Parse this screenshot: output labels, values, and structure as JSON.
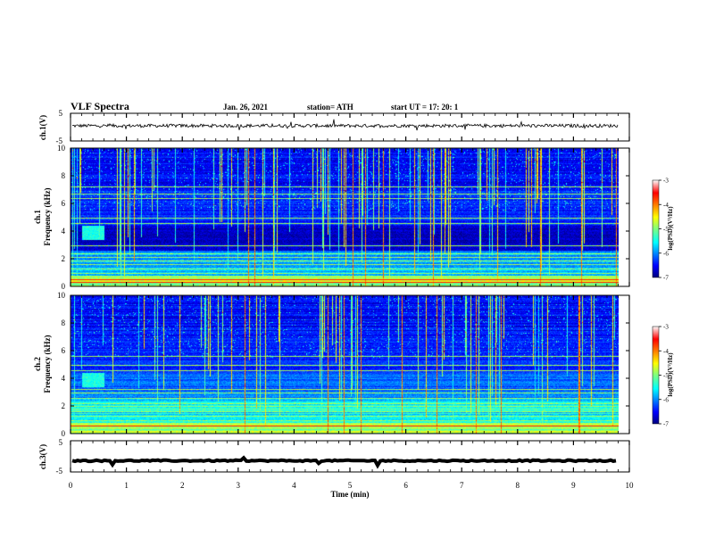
{
  "header": {
    "title": "VLF Spectra",
    "date": "Jan. 26, 2021",
    "station": "station= ATH",
    "start": "start UT =   17: 20: 1"
  },
  "chart_data": [
    {
      "type": "line",
      "panel": "ch1-waveform",
      "ylabel": "ch.1(V)",
      "ylim": [
        -5,
        5
      ],
      "yticks": [
        "5",
        "-5"
      ],
      "x_range_min": [
        0,
        9.8
      ],
      "baseline_v": 0.5,
      "noise_v": 0.6
    },
    {
      "type": "heatmap",
      "panel": "ch1-spectrogram",
      "ylabel_lines": [
        "ch.1",
        "Frequency (kHz)"
      ],
      "ylim_khz": [
        0,
        10
      ],
      "yticks": [
        "0",
        "2",
        "4",
        "6",
        "8",
        "10"
      ],
      "x_range_min": [
        0,
        9.8
      ],
      "colorbar": {
        "label": "log(PSD)(V²/Hz)",
        "range": [
          -7,
          -3
        ],
        "ticks": [
          "-3",
          "-4",
          "-5",
          "-6",
          "-7"
        ]
      },
      "bands_khz": [
        0.3,
        0.5,
        0.7,
        1.0,
        1.3,
        1.6,
        1.9,
        2.1,
        2.4,
        3.0,
        4.6,
        5.0,
        6.4,
        6.7,
        7.2
      ]
    },
    {
      "type": "heatmap",
      "panel": "ch2-spectrogram",
      "ylabel_lines": [
        "ch.2",
        "Frequency (kHz)"
      ],
      "ylim_khz": [
        0,
        10
      ],
      "yticks": [
        "0",
        "2",
        "4",
        "6",
        "8",
        "10"
      ],
      "x_range_min": [
        0,
        9.8
      ],
      "colorbar": {
        "label": "log(PSD)(V²/Hz)",
        "range": [
          -7,
          -3
        ],
        "ticks": [
          "-3",
          "-4",
          "-5",
          "-6",
          "-7"
        ]
      },
      "bands_khz": [
        0.2,
        0.6,
        1.0,
        1.3,
        1.6,
        2.0,
        2.2,
        2.6,
        3.0,
        3.2,
        4.6,
        5.0,
        5.6
      ]
    },
    {
      "type": "line",
      "panel": "ch3-waveform",
      "ylabel": "ch.3(V)",
      "ylim": [
        -5,
        5
      ],
      "yticks": [
        "5",
        "-5"
      ],
      "x_range_min": [
        0,
        9.8
      ],
      "baseline_v": -1.4,
      "noise_v": 0.2
    }
  ],
  "xaxis": {
    "label": "Time  (min)",
    "xlim": [
      0,
      10
    ],
    "ticks": [
      "0",
      "1",
      "2",
      "3",
      "4",
      "5",
      "6",
      "7",
      "8",
      "9",
      "10"
    ]
  },
  "colors": {
    "background": "#ffffff",
    "frame": "#000000"
  }
}
